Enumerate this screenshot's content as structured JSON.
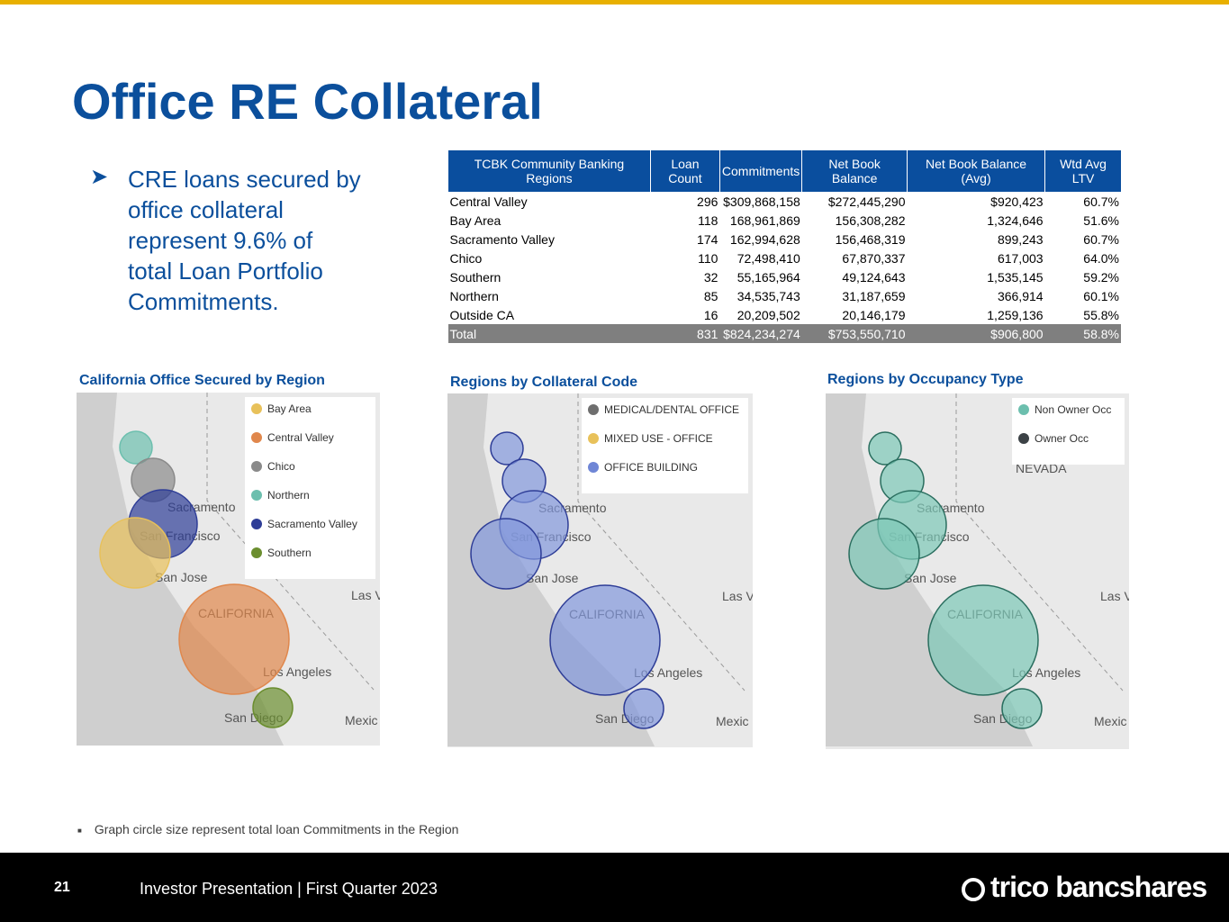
{
  "header": {
    "title": "Office RE Collateral"
  },
  "bullet": "CRE loans secured by office collateral represent 9.6% of total Loan Portfolio Commitments.",
  "table": {
    "columns": [
      "TCBK Community Banking Regions",
      "Loan Count",
      "Commitments",
      "Net Book Balance",
      "Net Book Balance (Avg)",
      "Wtd Avg LTV"
    ],
    "rows": [
      [
        "Central Valley",
        "296",
        "$309,868,158",
        "$272,445,290",
        "$920,423",
        "60.7%"
      ],
      [
        "Bay Area",
        "118",
        "168,961,869",
        "156,308,282",
        "1,324,646",
        "51.6%"
      ],
      [
        "Sacramento Valley",
        "174",
        "162,994,628",
        "156,468,319",
        "899,243",
        "60.7%"
      ],
      [
        "Chico",
        "110",
        "72,498,410",
        "67,870,337",
        "617,003",
        "64.0%"
      ],
      [
        "Southern",
        "32",
        "55,165,964",
        "49,124,643",
        "1,535,145",
        "59.2%"
      ],
      [
        "Northern",
        "85",
        "34,535,743",
        "31,187,659",
        "366,914",
        "60.1%"
      ],
      [
        "Outside CA",
        "16",
        "20,209,502",
        "20,146,179",
        "1,259,136",
        "55.8%"
      ]
    ],
    "total": [
      "Total",
      "831",
      "$824,234,274",
      "$753,550,710",
      "$906,800",
      "58.8%"
    ]
  },
  "maps": [
    {
      "title": "California Office Secured by Region",
      "legend": [
        "Bay Area",
        "Central Valley",
        "Chico",
        "Northern",
        "Sacramento Valley",
        "Southern"
      ],
      "places": [
        "Sacramento",
        "San Francisco",
        "San Jose",
        "CALIFORNIA",
        "Los Angeles",
        "San Diego",
        "Las V",
        "Mexic"
      ]
    },
    {
      "title": "Regions by Collateral Code",
      "legend": [
        "MEDICAL/DENTAL OFFICE",
        "MIXED USE - OFFICE",
        "OFFICE BUILDING"
      ],
      "places": [
        "Sacramento",
        "San Francisco",
        "San Jose",
        "CALIFORNIA",
        "Los Angeles",
        "San Diego",
        "Las V",
        "Mexic"
      ]
    },
    {
      "title": "Regions by Occupancy Type",
      "legend": [
        "Non Owner Occ",
        "Owner Occ"
      ],
      "places": [
        "Sacramento",
        "San Francisco",
        "San Jose",
        "CALIFORNIA",
        "Los Angeles",
        "San Diego",
        "Las V",
        "Mexic",
        "NEVADA"
      ]
    }
  ],
  "footnote": "Graph circle size represent total loan Commitments in the Region",
  "footer": {
    "page": "21",
    "text": "Investor Presentation | First Quarter 2023",
    "logo": "trico bancshares"
  }
}
